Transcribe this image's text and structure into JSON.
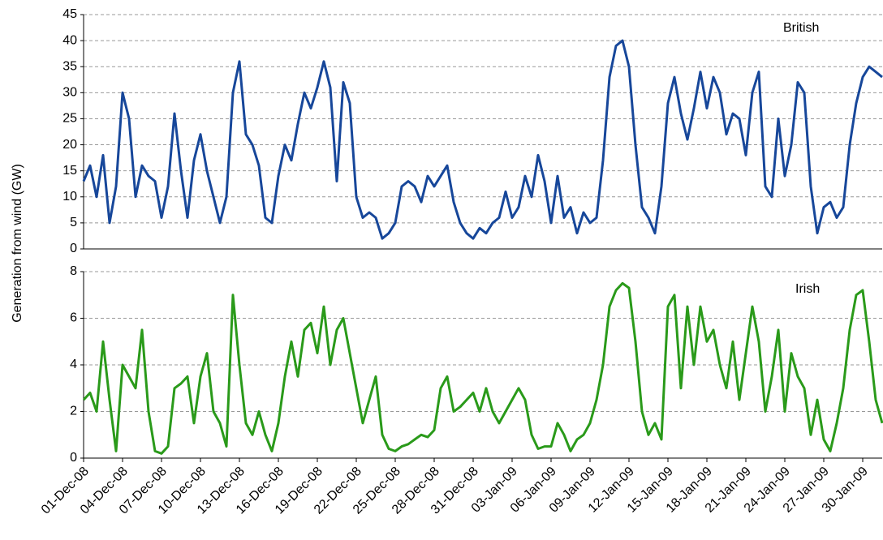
{
  "chart_data": [
    {
      "type": "line",
      "ylabel": "Generation from wind (GW)",
      "x": [
        0,
        0.5,
        1,
        1.5,
        2,
        2.5,
        3,
        3.5,
        4,
        4.5,
        5,
        5.5,
        6,
        6.5,
        7,
        7.5,
        8,
        8.5,
        9,
        9.5,
        10,
        10.5,
        11,
        11.5,
        12,
        12.5,
        13,
        13.5,
        14,
        14.5,
        15,
        15.5,
        16,
        16.5,
        17,
        17.5,
        18,
        18.5,
        19,
        19.5,
        20,
        20.5,
        21,
        21.5,
        22,
        22.5,
        23,
        23.5,
        24,
        24.5,
        25,
        25.5,
        26,
        26.5,
        27,
        27.5,
        28,
        28.5,
        29,
        29.5,
        30,
        30.5,
        31,
        31.5,
        32,
        32.5,
        33,
        33.5,
        34,
        34.5,
        35,
        35.5,
        36,
        36.5,
        37,
        37.5,
        38,
        38.5,
        39,
        39.5,
        40,
        40.5,
        41,
        41.5,
        42,
        42.5,
        43,
        43.5,
        44,
        44.5,
        45,
        45.5,
        46,
        46.5,
        47,
        47.5,
        48,
        48.5,
        49,
        49.5,
        50,
        50.5,
        51,
        51.5,
        52,
        52.5,
        53,
        53.5,
        54,
        54.5,
        55,
        55.5,
        56,
        56.5,
        57,
        57.5,
        58,
        58.5,
        59,
        59.5,
        60,
        60.5,
        61,
        61.5
      ],
      "series": [
        {
          "name": "British",
          "color": "#17479a",
          "values": [
            13,
            16,
            10,
            18,
            5,
            12,
            30,
            25,
            10,
            16,
            14,
            13,
            6,
            12,
            26,
            15,
            6,
            17,
            22,
            15,
            10,
            5,
            10,
            30,
            36,
            22,
            20,
            16,
            6,
            5,
            14,
            20,
            17,
            24,
            30,
            27,
            31,
            36,
            31,
            13,
            32,
            28,
            10,
            6,
            7,
            6,
            2,
            3,
            5,
            12,
            13,
            12,
            9,
            14,
            12,
            14,
            16,
            9,
            5,
            3,
            2,
            4,
            3,
            5,
            6,
            11,
            6,
            8,
            14,
            10,
            18,
            13,
            5,
            14,
            6,
            8,
            3,
            7,
            5,
            6,
            17,
            33,
            39,
            40,
            35,
            20,
            8,
            6,
            3,
            12,
            28,
            33,
            26,
            21,
            27,
            34,
            27,
            33,
            30,
            22,
            26,
            25,
            18,
            30,
            34,
            12,
            10,
            25,
            14,
            20,
            32,
            30,
            12,
            3,
            8,
            9,
            6,
            8,
            20,
            28,
            33,
            35,
            34,
            33
          ]
        }
      ],
      "xlim": [
        0,
        61.5
      ],
      "ylim": [
        0,
        45
      ],
      "yticks": [
        0,
        5,
        10,
        15,
        20,
        25,
        30,
        35,
        40,
        45
      ],
      "grid": true
    },
    {
      "type": "line",
      "x": [
        0,
        0.5,
        1,
        1.5,
        2,
        2.5,
        3,
        3.5,
        4,
        4.5,
        5,
        5.5,
        6,
        6.5,
        7,
        7.5,
        8,
        8.5,
        9,
        9.5,
        10,
        10.5,
        11,
        11.5,
        12,
        12.5,
        13,
        13.5,
        14,
        14.5,
        15,
        15.5,
        16,
        16.5,
        17,
        17.5,
        18,
        18.5,
        19,
        19.5,
        20,
        20.5,
        21,
        21.5,
        22,
        22.5,
        23,
        23.5,
        24,
        24.5,
        25,
        25.5,
        26,
        26.5,
        27,
        27.5,
        28,
        28.5,
        29,
        29.5,
        30,
        30.5,
        31,
        31.5,
        32,
        32.5,
        33,
        33.5,
        34,
        34.5,
        35,
        35.5,
        36,
        36.5,
        37,
        37.5,
        38,
        38.5,
        39,
        39.5,
        40,
        40.5,
        41,
        41.5,
        42,
        42.5,
        43,
        43.5,
        44,
        44.5,
        45,
        45.5,
        46,
        46.5,
        47,
        47.5,
        48,
        48.5,
        49,
        49.5,
        50,
        50.5,
        51,
        51.5,
        52,
        52.5,
        53,
        53.5,
        54,
        54.5,
        55,
        55.5,
        56,
        56.5,
        57,
        57.5,
        58,
        58.5,
        59,
        59.5,
        60,
        60.5,
        61,
        61.5
      ],
      "series": [
        {
          "name": "Irish",
          "color": "#2a9a1a",
          "values": [
            2.5,
            2.8,
            2.0,
            5.0,
            2.5,
            0.3,
            4.0,
            3.5,
            3.0,
            5.5,
            2.0,
            0.3,
            0.2,
            0.5,
            3.0,
            3.2,
            3.5,
            1.5,
            3.5,
            4.5,
            2.0,
            1.5,
            0.5,
            7.0,
            4.0,
            1.5,
            1.0,
            2.0,
            1.0,
            0.3,
            1.5,
            3.5,
            5.0,
            3.5,
            5.5,
            5.8,
            4.5,
            6.5,
            4.0,
            5.5,
            6.0,
            4.5,
            3.0,
            1.5,
            2.5,
            3.5,
            1.0,
            0.4,
            0.3,
            0.5,
            0.6,
            0.8,
            1.0,
            0.9,
            1.2,
            3.0,
            3.5,
            2.0,
            2.2,
            2.5,
            2.8,
            2.0,
            3.0,
            2.0,
            1.5,
            2.0,
            2.5,
            3.0,
            2.5,
            1.0,
            0.4,
            0.5,
            0.5,
            1.5,
            1.0,
            0.3,
            0.8,
            1.0,
            1.5,
            2.5,
            4.0,
            6.5,
            7.2,
            7.5,
            7.3,
            5.0,
            2.0,
            1.0,
            1.5,
            0.8,
            6.5,
            7.0,
            3.0,
            6.5,
            4.0,
            6.5,
            5.0,
            5.5,
            4.0,
            3.0,
            5.0,
            2.5,
            4.5,
            6.5,
            5.0,
            2.0,
            3.5,
            5.5,
            2.0,
            4.5,
            3.5,
            3.0,
            1.0,
            2.5,
            0.8,
            0.3,
            1.5,
            3.0,
            5.5,
            7.0,
            7.2,
            5.0,
            2.5,
            1.5
          ]
        }
      ],
      "xlim": [
        0,
        61.5
      ],
      "ylim": [
        0,
        8
      ],
      "yticks": [
        0,
        2,
        4,
        6,
        8
      ],
      "grid": true,
      "xticks": [
        {
          "value": 0,
          "label": "01-Dec-08"
        },
        {
          "value": 3,
          "label": "04-Dec-08"
        },
        {
          "value": 6,
          "label": "07-Dec-08"
        },
        {
          "value": 9,
          "label": "10-Dec-08"
        },
        {
          "value": 12,
          "label": "13-Dec-08"
        },
        {
          "value": 15,
          "label": "16-Dec-08"
        },
        {
          "value": 18,
          "label": "19-Dec-08"
        },
        {
          "value": 21,
          "label": "22-Dec-08"
        },
        {
          "value": 24,
          "label": "25-Dec-08"
        },
        {
          "value": 27,
          "label": "28-Dec-08"
        },
        {
          "value": 30,
          "label": "31-Dec-08"
        },
        {
          "value": 33,
          "label": "03-Jan-09"
        },
        {
          "value": 36,
          "label": "06-Jan-09"
        },
        {
          "value": 39,
          "label": "09-Jan-09"
        },
        {
          "value": 42,
          "label": "12-Jan-09"
        },
        {
          "value": 45,
          "label": "15-Jan-09"
        },
        {
          "value": 48,
          "label": "18-Jan-09"
        },
        {
          "value": 51,
          "label": "21-Jan-09"
        },
        {
          "value": 54,
          "label": "24-Jan-09"
        },
        {
          "value": 57,
          "label": "27-Jan-09"
        },
        {
          "value": 60,
          "label": "30-Jan-09"
        }
      ]
    }
  ]
}
